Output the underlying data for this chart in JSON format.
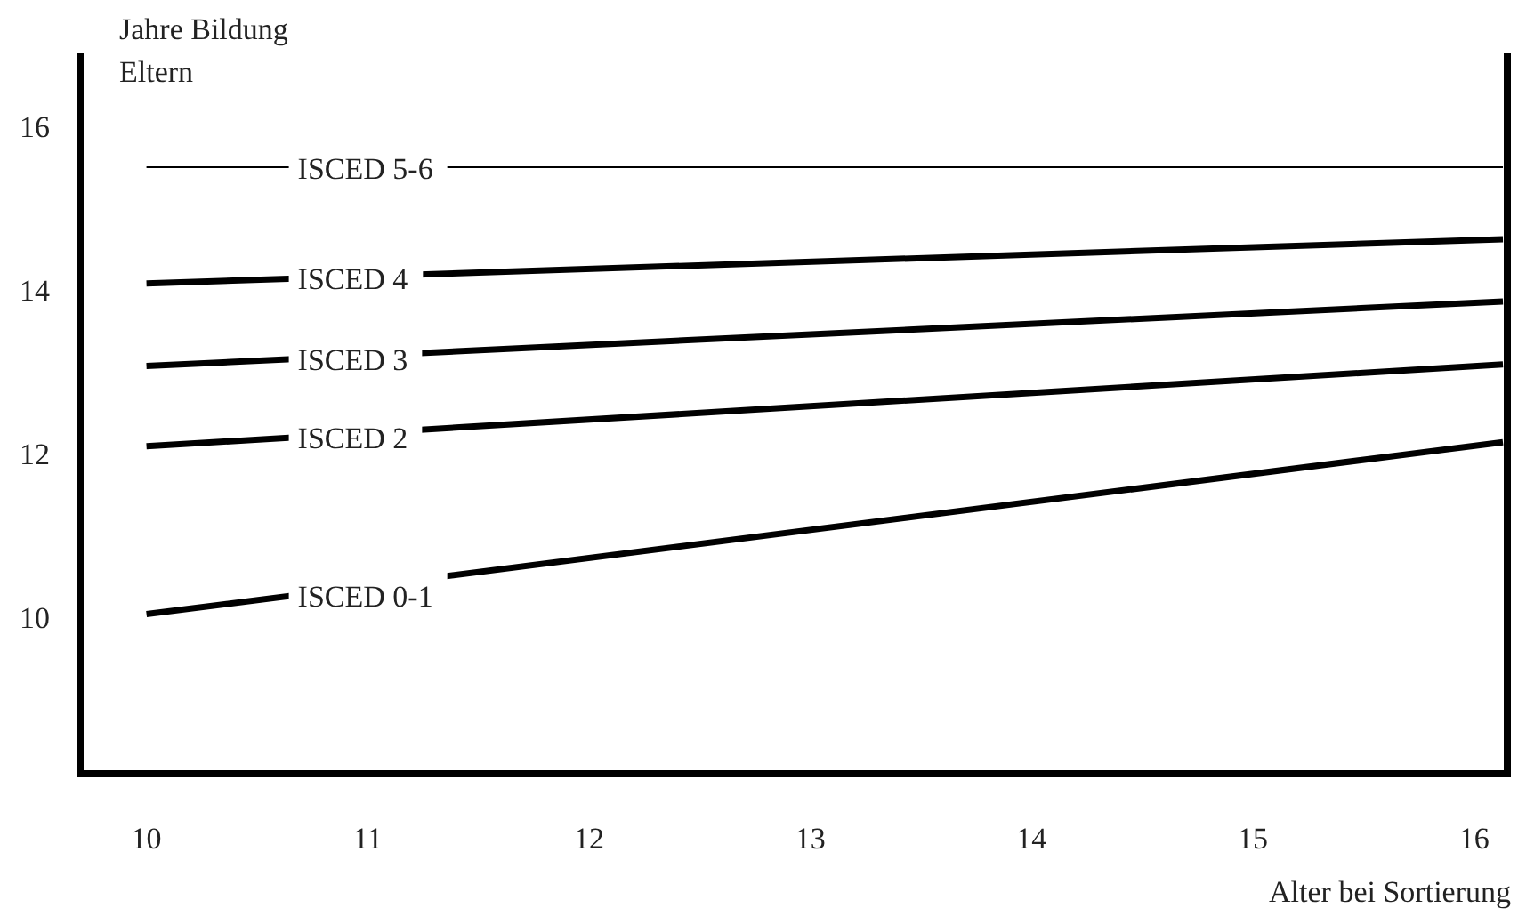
{
  "chart_data": {
    "type": "line",
    "ylabel": "Jahre Bildung Eltern",
    "xlabel": "Alter bei Sortierung",
    "x": [
      10,
      16.13
    ],
    "series": [
      {
        "name": "ISCED 5-6",
        "color": "#000000",
        "values": [
          15.5,
          15.52
        ]
      },
      {
        "name": "ISCED 4",
        "color": "#000000",
        "values": [
          14.09,
          14.63
        ]
      },
      {
        "name": "ISCED 3",
        "color": "#000000",
        "values": [
          13.08,
          13.87
        ]
      },
      {
        "name": "ISCED 2",
        "color": "#000000",
        "values": [
          12.1,
          13.1
        ]
      },
      {
        "name": "ISCED 0-1",
        "color": "#000000",
        "values": [
          10.05,
          12.15
        ]
      }
    ],
    "xlim": [
      9.7,
      16.15
    ],
    "ylim": [
      8.1,
      16.9
    ],
    "xticks": [
      10,
      11,
      12,
      13,
      14,
      15,
      16
    ],
    "yticks": [
      10,
      12,
      14,
      16
    ],
    "grid": false,
    "legend": false,
    "marker": "none",
    "line_style": "solid"
  }
}
